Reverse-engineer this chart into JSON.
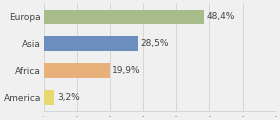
{
  "categories": [
    "Europa",
    "Asia",
    "Africa",
    "America"
  ],
  "values": [
    48.4,
    28.5,
    19.9,
    3.2
  ],
  "labels": [
    "48,4%",
    "28,5%",
    "19,9%",
    "3,2%"
  ],
  "bar_colors": [
    "#a8bb8a",
    "#6b8ebf",
    "#e8b07a",
    "#e8d870"
  ],
  "background_color": "#f0f0f0",
  "label_fontsize": 6.5,
  "category_fontsize": 6.5,
  "xlim": 70,
  "bar_height": 0.55
}
